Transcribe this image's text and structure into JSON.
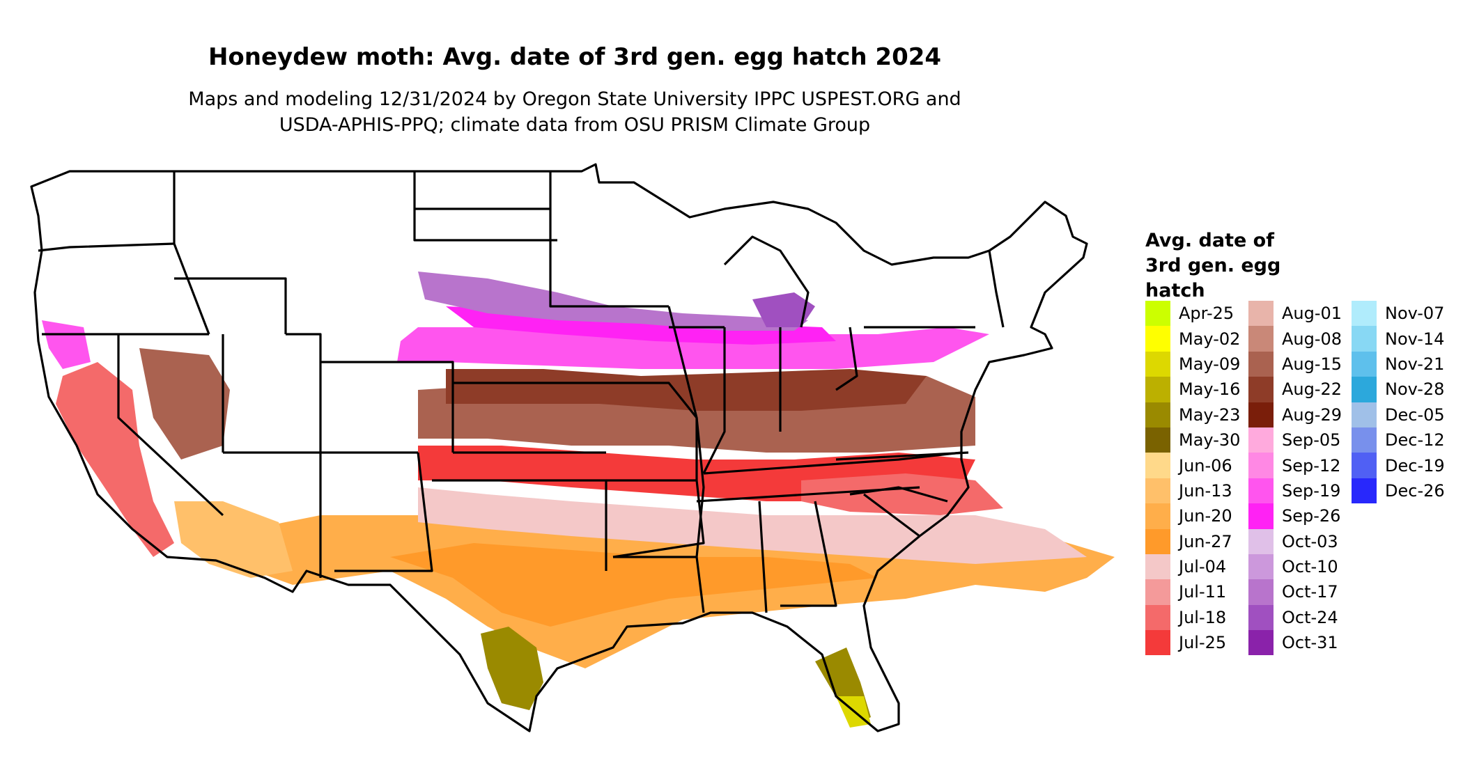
{
  "title": "Honeydew moth: Avg. date of 3rd gen. egg hatch 2024",
  "subtitle_lines": [
    "Maps and modeling 12/31/2024 by Oregon State University IPPC USPEST.ORG and",
    "USDA-APHIS-PPQ; climate data from OSU PRISM Climate Group"
  ],
  "legend": {
    "title_lines": [
      "Avg. date of",
      "3rd gen. egg",
      "hatch"
    ],
    "items": [
      {
        "label": "Apr-25",
        "color": "#ccff00"
      },
      {
        "label": "May-02",
        "color": "#ffff00"
      },
      {
        "label": "May-09",
        "color": "#ddd800"
      },
      {
        "label": "May-16",
        "color": "#bcb000"
      },
      {
        "label": "May-23",
        "color": "#9a8a00"
      },
      {
        "label": "May-30",
        "color": "#7a6200"
      },
      {
        "label": "Jun-06",
        "color": "#ffd98a"
      },
      {
        "label": "Jun-13",
        "color": "#ffc06a"
      },
      {
        "label": "Jun-20",
        "color": "#ffae4a"
      },
      {
        "label": "Jun-27",
        "color": "#ff9a2a"
      },
      {
        "label": "Jul-04",
        "color": "#f4c8c8"
      },
      {
        "label": "Jul-11",
        "color": "#f49a9a"
      },
      {
        "label": "Jul-18",
        "color": "#f46a6a"
      },
      {
        "label": "Jul-25",
        "color": "#f43a3a"
      },
      {
        "label": "Aug-01",
        "color": "#e8b4aa"
      },
      {
        "label": "Aug-08",
        "color": "#c98878"
      },
      {
        "label": "Aug-15",
        "color": "#aa6250"
      },
      {
        "label": "Aug-22",
        "color": "#8e3c28"
      },
      {
        "label": "Aug-29",
        "color": "#7a1e0a"
      },
      {
        "label": "Sep-05",
        "color": "#ffaadd"
      },
      {
        "label": "Sep-12",
        "color": "#ff88e4"
      },
      {
        "label": "Sep-19",
        "color": "#ff55ee"
      },
      {
        "label": "Sep-26",
        "color": "#ff22f4"
      },
      {
        "label": "Oct-03",
        "color": "#e0c0e8"
      },
      {
        "label": "Oct-10",
        "color": "#cc98dc"
      },
      {
        "label": "Oct-17",
        "color": "#b874cc"
      },
      {
        "label": "Oct-24",
        "color": "#a050c0"
      },
      {
        "label": "Oct-31",
        "color": "#8a22aa"
      },
      {
        "label": "Nov-07",
        "color": "#b0ecfc"
      },
      {
        "label": "Nov-14",
        "color": "#88d8f4"
      },
      {
        "label": "Nov-21",
        "color": "#5ec0ec"
      },
      {
        "label": "Nov-28",
        "color": "#2ca8dc"
      },
      {
        "label": "Dec-05",
        "color": "#a0c0e8"
      },
      {
        "label": "Dec-12",
        "color": "#7890ec"
      },
      {
        "label": "Dec-19",
        "color": "#5060f4"
      },
      {
        "label": "Dec-26",
        "color": "#2828fc"
      }
    ]
  },
  "colors": {
    "background": "#ffffff",
    "state_border": "#000000"
  }
}
